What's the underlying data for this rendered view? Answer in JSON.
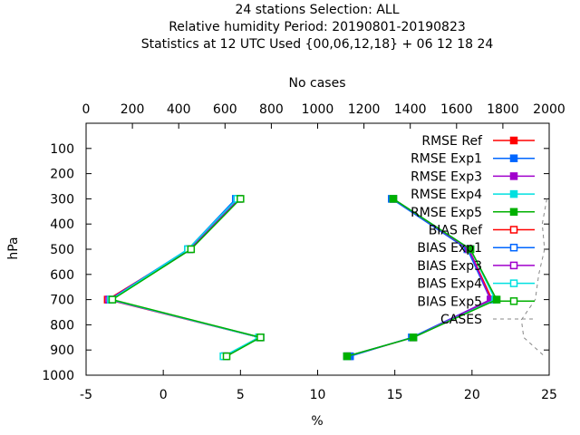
{
  "title_lines": [
    "24 stations Selection: ALL",
    "Relative humidity  Period: 20190801-20190823",
    "Statistics at 12 UTC  Used {00,06,12,18} + 06 12 18 24"
  ],
  "chart_data": {
    "type": "line",
    "title": "24 stations Selection: ALL / Relative humidity  Period: 20190801-20190823 / Statistics at 12 UTC  Used {00,06,12,18} + 06 12 18 24",
    "xlabel": "%",
    "ylabel": "hPa",
    "x2label": "No cases",
    "xlim": [
      -5,
      25
    ],
    "ylim": [
      1000,
      0
    ],
    "x2lim": [
      0,
      2000
    ],
    "x_ticks": [
      -5,
      0,
      5,
      10,
      15,
      20,
      25
    ],
    "x2_ticks": [
      0,
      200,
      400,
      600,
      800,
      1000,
      1200,
      1400,
      1600,
      1800,
      2000
    ],
    "y_ticks": [
      100,
      200,
      300,
      400,
      500,
      600,
      700,
      800,
      900,
      1000
    ],
    "levels": [
      300,
      500,
      700,
      850,
      925
    ],
    "legend_position": "top-right",
    "series": [
      {
        "name": "RMSE Ref",
        "color": "#ff0000",
        "marker": "filled",
        "x": [
          14.9,
          19.8,
          21.3,
          16.2,
          12.0
        ]
      },
      {
        "name": "RMSE Exp1",
        "color": "#0066ff",
        "marker": "filled",
        "x": [
          14.8,
          19.7,
          21.2,
          16.1,
          12.1
        ]
      },
      {
        "name": "RMSE Exp3",
        "color": "#a000cc",
        "marker": "filled",
        "x": [
          14.9,
          19.8,
          21.2,
          16.2,
          11.9
        ]
      },
      {
        "name": "RMSE Exp4",
        "color": "#00e0e0",
        "marker": "filled",
        "x": [
          14.9,
          19.9,
          21.5,
          16.2,
          11.9
        ]
      },
      {
        "name": "RMSE Exp5",
        "color": "#00b000",
        "marker": "filled",
        "x": [
          14.9,
          19.9,
          21.6,
          16.2,
          11.9
        ]
      },
      {
        "name": "BIAS Ref",
        "color": "#ff0000",
        "marker": "open",
        "x": [
          4.9,
          1.7,
          -3.6,
          6.2,
          4.0
        ]
      },
      {
        "name": "BIAS Exp1",
        "color": "#0066ff",
        "marker": "open",
        "x": [
          4.7,
          1.6,
          -3.5,
          6.3,
          4.0
        ]
      },
      {
        "name": "BIAS Exp3",
        "color": "#a000cc",
        "marker": "open",
        "x": [
          4.9,
          1.7,
          -3.5,
          6.2,
          4.0
        ]
      },
      {
        "name": "BIAS Exp4",
        "color": "#00e0e0",
        "marker": "open",
        "x": [
          4.8,
          1.6,
          -3.4,
          6.2,
          3.9
        ]
      },
      {
        "name": "BIAS Exp5",
        "color": "#00b000",
        "marker": "open",
        "x": [
          5.0,
          1.8,
          -3.3,
          6.3,
          4.1
        ]
      }
    ],
    "cases": {
      "name": "CASES",
      "color": "#888888",
      "y": [
        300,
        400,
        500,
        600,
        700,
        780,
        850,
        925
      ],
      "x2": [
        1990,
        1970,
        1980,
        1955,
        1940,
        1880,
        1890,
        1980
      ]
    }
  }
}
